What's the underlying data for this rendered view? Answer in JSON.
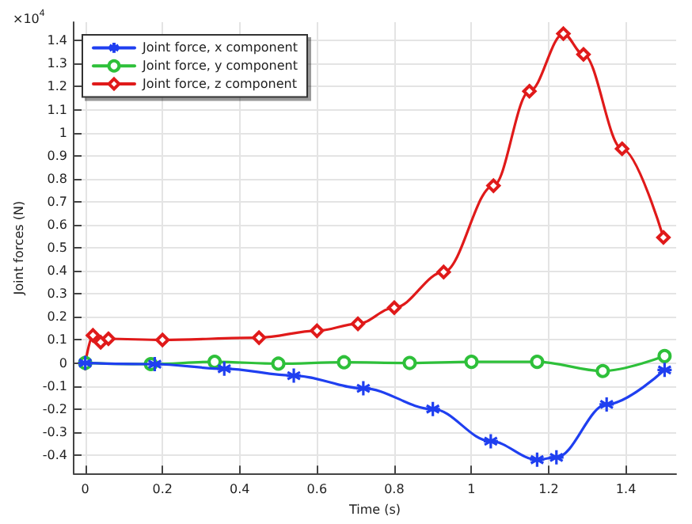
{
  "chart_data": {
    "type": "line",
    "xlabel": "Time (s)",
    "ylabel": "Joint forces (N)",
    "annotations": [
      "×10$^{4}$"
    ],
    "xlim": [
      -0.03,
      1.53
    ],
    "xticks": [
      0,
      0.2,
      0.4,
      0.6,
      0.8,
      1,
      1.2,
      1.4
    ],
    "ylim": [
      -0.48,
      1.48
    ],
    "yticks": [
      -0.4,
      -0.3,
      -0.2,
      -0.1,
      0,
      0.1,
      0.2,
      0.3,
      0.4,
      0.5,
      0.6,
      0.7,
      0.8,
      0.9,
      1,
      1.1,
      1.2,
      1.3,
      1.4
    ],
    "grid": true,
    "legend": "top left",
    "line_style": "solid",
    "series": [
      {
        "name": "Joint force, x component",
        "color": "#1f3ff0",
        "marker": "cross",
        "x": [
          0,
          0.18,
          0.36,
          0.54,
          0.72,
          0.9,
          1.05,
          1.17,
          1.22,
          1.35,
          1.5
        ],
        "values": [
          0,
          -0.005,
          -0.025,
          -0.055,
          -0.11,
          -0.2,
          -0.34,
          -0.42,
          -0.41,
          -0.18,
          -0.03
        ]
      },
      {
        "name": "Joint force, y component",
        "color": "#2ec03a",
        "marker": "circle",
        "x": [
          0,
          0.17,
          0.335,
          0.5,
          0.67,
          0.84,
          1,
          1.17,
          1.34,
          1.5
        ],
        "values": [
          0,
          -0.005,
          0.005,
          -0.003,
          0.003,
          0,
          0.005,
          0.005,
          -0.035,
          0.03
        ]
      },
      {
        "name": "Joint force, z component",
        "color": "#e01a1a",
        "marker": "diamond",
        "x": [
          0,
          0.02,
          0.04,
          0.06,
          0.2,
          0.45,
          0.6,
          0.706,
          0.8,
          0.928,
          1.057,
          1.15,
          1.238,
          1.29,
          1.39,
          1.497
        ],
        "values": [
          0,
          0.12,
          0.09,
          0.105,
          0.1,
          0.11,
          0.14,
          0.17,
          0.24,
          0.395,
          0.77,
          1.18,
          1.43,
          1.34,
          0.93,
          0.545
        ]
      }
    ]
  }
}
